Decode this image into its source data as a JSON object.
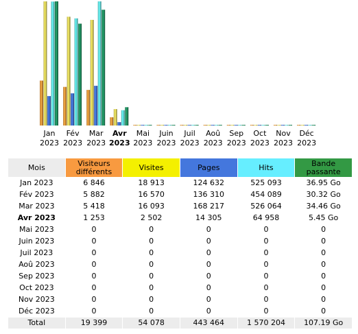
{
  "chart_data": {
    "type": "bar",
    "categories": [
      {
        "month": "Jan",
        "year": "2023",
        "current": false
      },
      {
        "month": "Fév",
        "year": "2023",
        "current": false
      },
      {
        "month": "Mar",
        "year": "2023",
        "current": false
      },
      {
        "month": "Avr",
        "year": "2023",
        "current": true
      },
      {
        "month": "Mai",
        "year": "2023",
        "current": false
      },
      {
        "month": "Juin",
        "year": "2023",
        "current": false
      },
      {
        "month": "Juil",
        "year": "2023",
        "current": false
      },
      {
        "month": "Aoû",
        "year": "2023",
        "current": false
      },
      {
        "month": "Sep",
        "year": "2023",
        "current": false
      },
      {
        "month": "Oct",
        "year": "2023",
        "current": false
      },
      {
        "month": "Nov",
        "year": "2023",
        "current": false
      },
      {
        "month": "Déc",
        "year": "2023",
        "current": false
      }
    ],
    "series": [
      {
        "name": "Visiteurs différents",
        "color": "#f4a040",
        "values": [
          6846,
          5882,
          5418,
          1253,
          0,
          0,
          0,
          0,
          0,
          0,
          0,
          0
        ]
      },
      {
        "name": "Visites",
        "color": "#f0e060",
        "values": [
          18913,
          16570,
          16093,
          2502,
          0,
          0,
          0,
          0,
          0,
          0,
          0,
          0
        ]
      },
      {
        "name": "Pages",
        "color": "#4477dd",
        "values": [
          124632,
          136310,
          168217,
          14305,
          0,
          0,
          0,
          0,
          0,
          0,
          0,
          0
        ]
      },
      {
        "name": "Hits",
        "color": "#66eeee",
        "values": [
          525093,
          454089,
          526064,
          64958,
          0,
          0,
          0,
          0,
          0,
          0,
          0,
          0
        ]
      },
      {
        "name": "Bande passante",
        "color": "#229966",
        "values": [
          36.95,
          30.32,
          34.46,
          5.45,
          0,
          0,
          0,
          0,
          0,
          0,
          0,
          0
        ]
      }
    ],
    "scale_groups": [
      [
        "Visiteurs différents",
        "Visites"
      ],
      [
        "Pages",
        "Hits"
      ],
      [
        "Bande passante"
      ]
    ]
  },
  "table": {
    "headers": [
      {
        "label": "Mois",
        "color": "#ececec"
      },
      {
        "label": "Visiteurs différents",
        "color": "#f89a40"
      },
      {
        "label": "Visites",
        "color": "#f4f000"
      },
      {
        "label": "Pages",
        "color": "#4477dd"
      },
      {
        "label": "Hits",
        "color": "#66eeff"
      },
      {
        "label": "Bande passante",
        "color": "#339944"
      }
    ],
    "rows": [
      {
        "month": "Jan 2023",
        "visitors": "6 846",
        "visits": "18 913",
        "pages": "124 632",
        "hits": "525 093",
        "bandwidth": "36.95 Go",
        "current": false
      },
      {
        "month": "Fév 2023",
        "visitors": "5 882",
        "visits": "16 570",
        "pages": "136 310",
        "hits": "454 089",
        "bandwidth": "30.32 Go",
        "current": false
      },
      {
        "month": "Mar 2023",
        "visitors": "5 418",
        "visits": "16 093",
        "pages": "168 217",
        "hits": "526 064",
        "bandwidth": "34.46 Go",
        "current": false
      },
      {
        "month": "Avr 2023",
        "visitors": "1 253",
        "visits": "2 502",
        "pages": "14 305",
        "hits": "64 958",
        "bandwidth": "5.45 Go",
        "current": true
      },
      {
        "month": "Mai 2023",
        "visitors": "0",
        "visits": "0",
        "pages": "0",
        "hits": "0",
        "bandwidth": "0",
        "current": false
      },
      {
        "month": "Juin 2023",
        "visitors": "0",
        "visits": "0",
        "pages": "0",
        "hits": "0",
        "bandwidth": "0",
        "current": false
      },
      {
        "month": "Juil 2023",
        "visitors": "0",
        "visits": "0",
        "pages": "0",
        "hits": "0",
        "bandwidth": "0",
        "current": false
      },
      {
        "month": "Aoû 2023",
        "visitors": "0",
        "visits": "0",
        "pages": "0",
        "hits": "0",
        "bandwidth": "0",
        "current": false
      },
      {
        "month": "Sep 2023",
        "visitors": "0",
        "visits": "0",
        "pages": "0",
        "hits": "0",
        "bandwidth": "0",
        "current": false
      },
      {
        "month": "Oct 2023",
        "visitors": "0",
        "visits": "0",
        "pages": "0",
        "hits": "0",
        "bandwidth": "0",
        "current": false
      },
      {
        "month": "Nov 2023",
        "visitors": "0",
        "visits": "0",
        "pages": "0",
        "hits": "0",
        "bandwidth": "0",
        "current": false
      },
      {
        "month": "Déc 2023",
        "visitors": "0",
        "visits": "0",
        "pages": "0",
        "hits": "0",
        "bandwidth": "0",
        "current": false
      }
    ],
    "total": {
      "label": "Total",
      "visitors": "19 399",
      "visits": "54 078",
      "pages": "443 464",
      "hits": "1 570 204",
      "bandwidth": "107.19 Go"
    }
  }
}
